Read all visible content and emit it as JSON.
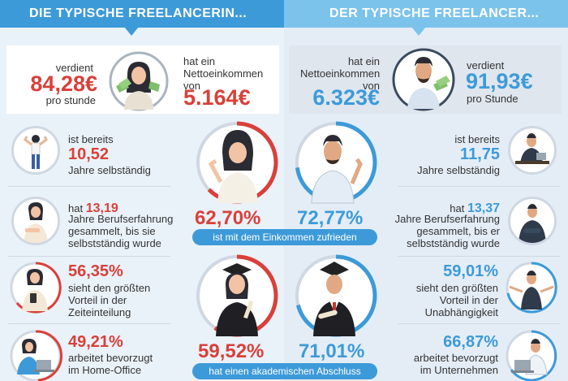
{
  "header": {
    "left_title": "DIE TYPISCHE FREELANCERIN...",
    "right_title": "DER TYPISCHE FREELANCER..."
  },
  "colors": {
    "female_accent": "#d9403a",
    "male_accent": "#3d9ad9",
    "header_left": "#3d9ad9",
    "header_right": "#7cc3ec"
  },
  "income": {
    "female": {
      "earns_label": "verdient",
      "hourly": "84,28€",
      "per_hour": "pro stunde",
      "net_label_1": "hat ein",
      "net_label_2": "Nettoeinkommen",
      "net_label_3": "von",
      "net": "5.164€"
    },
    "male": {
      "net_label_1": "hat ein",
      "net_label_2": "Nettoeinkommen",
      "net_label_3": "von",
      "net": "6.323€",
      "earns_label": "verdient",
      "hourly": "91,93€",
      "per_hour": "pro Stunde"
    }
  },
  "female_stats": {
    "self_employed": {
      "pre": "ist bereits",
      "value": "10,52",
      "post": "Jahre selbständig"
    },
    "experience": {
      "pre": "hat",
      "value": "13,19",
      "line2": "Jahre Berufserfahrung",
      "line3": "gesammelt, bis sie",
      "line4": "selbstständig wurde"
    },
    "time_advantage": {
      "value": "56,35%",
      "line1": "sieht den größten",
      "line2": "Vorteil in der",
      "line3": "Zeiteinteilung"
    },
    "home_office": {
      "value": "49,21%",
      "line1": "arbeitet bevorzugt",
      "line2": "im Home-Office"
    }
  },
  "male_stats": {
    "self_employed": {
      "pre": "ist bereits",
      "value": "11,75",
      "post": "Jahre selbständig"
    },
    "experience": {
      "pre": "hat",
      "value": "13,37",
      "line2": "Jahre Berufserfahrung",
      "line3": "gesammelt, bis er",
      "line4": "selbstständig wurde"
    },
    "independence": {
      "value": "59,01%",
      "line1": "sieht den größten",
      "line2": "Vorteil in der",
      "line3": "Unabhängigkeit"
    },
    "company": {
      "value": "66,87%",
      "line1": "arbeitet bevorzugt",
      "line2": "im Unternehmen"
    }
  },
  "satisfaction": {
    "female_pct": "62,70%",
    "male_pct": "72,77%",
    "female_fraction": 0.627,
    "male_fraction": 0.7277,
    "caption": "ist mit dem Einkommen zufrieden"
  },
  "academic": {
    "female_pct": "59,52%",
    "male_pct": "71,01%",
    "female_fraction": 0.5952,
    "male_fraction": 0.7101,
    "caption": "hat einen akademischen Abschluss"
  },
  "icons": {
    "money_fan": "money-fan-icon",
    "woman": "woman-avatar-icon",
    "man": "man-avatar-icon",
    "graduate": "graduate-icon"
  }
}
